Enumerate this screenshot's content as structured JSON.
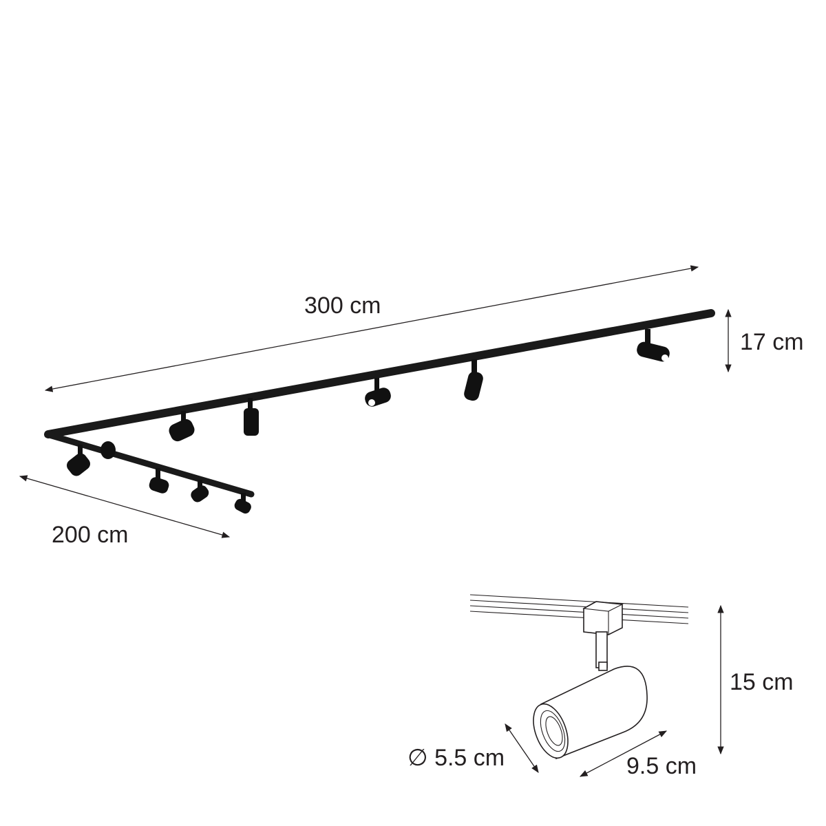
{
  "dimensions": {
    "track_length": "300 cm",
    "track_height": "17 cm",
    "track_short_length": "200 cm",
    "spot_height": "15 cm",
    "spot_diameter": "∅ 5.5 cm",
    "spot_length": "9.5 cm"
  },
  "colors": {
    "line": "#231f20",
    "fixture": "#111111",
    "background": "#ffffff"
  },
  "icons": [
    "diameter-icon"
  ]
}
